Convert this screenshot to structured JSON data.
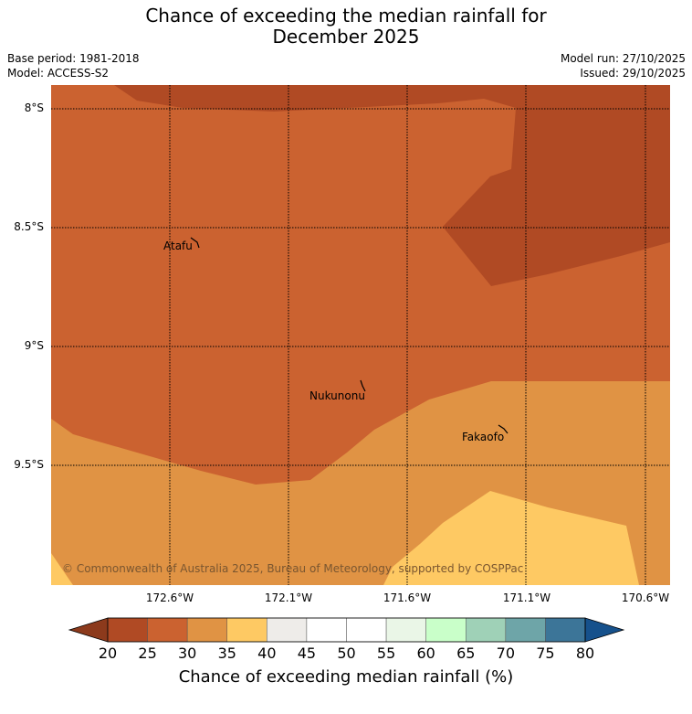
{
  "title_line1": "Chance of exceeding the median rainfall for",
  "title_line2": "December 2025",
  "base_period": "Base period: 1981-2018",
  "model": "Model: ACCESS-S2",
  "model_run": "Model run: 27/10/2025",
  "issued": "Issued: 29/10/2025",
  "copyright": "© Commonwealth of Australia 2025, Bureau of Meteorology, supported by COSPPac",
  "lat_labels": [
    "8°S",
    "8.5°S",
    "9°S",
    "9.5°S"
  ],
  "lon_labels": [
    "172.6°W",
    "172.1°W",
    "171.6°W",
    "171.1°W",
    "170.6°W"
  ],
  "places": [
    "Atafu",
    "Nukunonu",
    "Fakaofo"
  ],
  "colorbar": {
    "ticks": [
      "20",
      "25",
      "30",
      "35",
      "40",
      "45",
      "50",
      "55",
      "60",
      "65",
      "70",
      "75",
      "80"
    ],
    "colors": [
      "#b04a24",
      "#cb6230",
      "#e09344",
      "#fec963",
      "#eeece9",
      "#ffffff",
      "#ffffff",
      "#eaf6e7",
      "#c9ffc9",
      "#9fd1b7",
      "#6ea5a8",
      "#3c7598"
    ],
    "under_color": "#8c3a1c",
    "over_color": "#16518c",
    "label": "Chance of exceeding median rainfall (%)"
  },
  "region_colors": {
    "c20": "#b04a24",
    "c25": "#cb6230",
    "c30": "#e09344",
    "c35": "#fec963"
  }
}
